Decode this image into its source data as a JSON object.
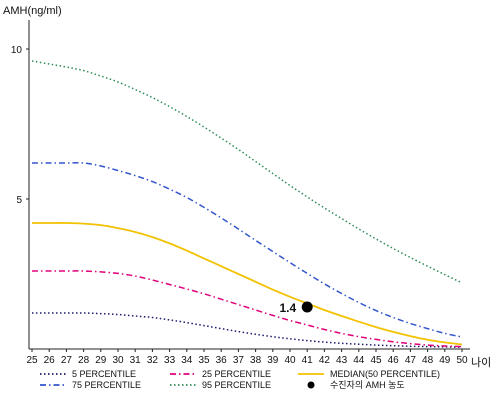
{
  "chart_data": {
    "type": "line",
    "ylabel": "AMH(ng/ml)",
    "xlabel": "나이",
    "x": [
      25,
      26,
      27,
      28,
      29,
      30,
      31,
      32,
      33,
      34,
      35,
      36,
      37,
      38,
      39,
      40,
      41,
      42,
      43,
      44,
      45,
      46,
      47,
      48,
      49,
      50
    ],
    "xlim": [
      25,
      50
    ],
    "ylim": [
      0,
      11
    ],
    "yticks": [
      5,
      10
    ],
    "grid": false,
    "legend_position": "bottom",
    "series": [
      {
        "name": "5 PERCENTILE",
        "color": "#1a1a6e",
        "dash": "dotted",
        "values": [
          1.2,
          1.2,
          1.2,
          1.2,
          1.18,
          1.15,
          1.1,
          1.05,
          0.97,
          0.88,
          0.78,
          0.68,
          0.58,
          0.49,
          0.41,
          0.34,
          0.28,
          0.23,
          0.19,
          0.16,
          0.13,
          0.11,
          0.09,
          0.08,
          0.07,
          0.06
        ]
      },
      {
        "name": "25 PERCENTILE",
        "color": "#e0007a",
        "dash": "dashdot",
        "values": [
          2.6,
          2.6,
          2.6,
          2.6,
          2.57,
          2.52,
          2.43,
          2.3,
          2.15,
          2.0,
          1.84,
          1.66,
          1.48,
          1.3,
          1.12,
          0.95,
          0.8,
          0.65,
          0.52,
          0.41,
          0.32,
          0.24,
          0.18,
          0.13,
          0.1,
          0.08
        ]
      },
      {
        "name": "75 PERCENTILE",
        "color": "#3355cc",
        "dash": "dashdot",
        "values": [
          6.2,
          6.2,
          6.2,
          6.2,
          6.1,
          5.95,
          5.78,
          5.58,
          5.33,
          5.05,
          4.72,
          4.37,
          4.0,
          3.62,
          3.25,
          2.88,
          2.52,
          2.17,
          1.85,
          1.55,
          1.28,
          1.05,
          0.85,
          0.68,
          0.52,
          0.4
        ]
      },
      {
        "name": "95 PERCENTILE",
        "color": "#2e8b57",
        "dash": "dotted",
        "values": [
          9.6,
          9.5,
          9.4,
          9.28,
          9.1,
          8.9,
          8.65,
          8.38,
          8.08,
          7.75,
          7.4,
          7.03,
          6.65,
          6.25,
          5.85,
          5.45,
          5.07,
          4.7,
          4.35,
          4.0,
          3.67,
          3.35,
          3.05,
          2.76,
          2.48,
          2.2
        ]
      },
      {
        "name": "MEDIAN(50 PERCENTILE)",
        "color": "#f2c200",
        "dash": "solid",
        "values": [
          4.2,
          4.2,
          4.2,
          4.18,
          4.13,
          4.03,
          3.9,
          3.73,
          3.52,
          3.28,
          3.02,
          2.76,
          2.5,
          2.24,
          1.98,
          1.74,
          1.52,
          1.3,
          1.1,
          0.91,
          0.73,
          0.57,
          0.43,
          0.31,
          0.22,
          0.15
        ]
      }
    ],
    "point": {
      "name": "수진자의 AMH 농도",
      "x": 41,
      "y": 1.4,
      "label": "1.4",
      "color": "#000000"
    }
  }
}
